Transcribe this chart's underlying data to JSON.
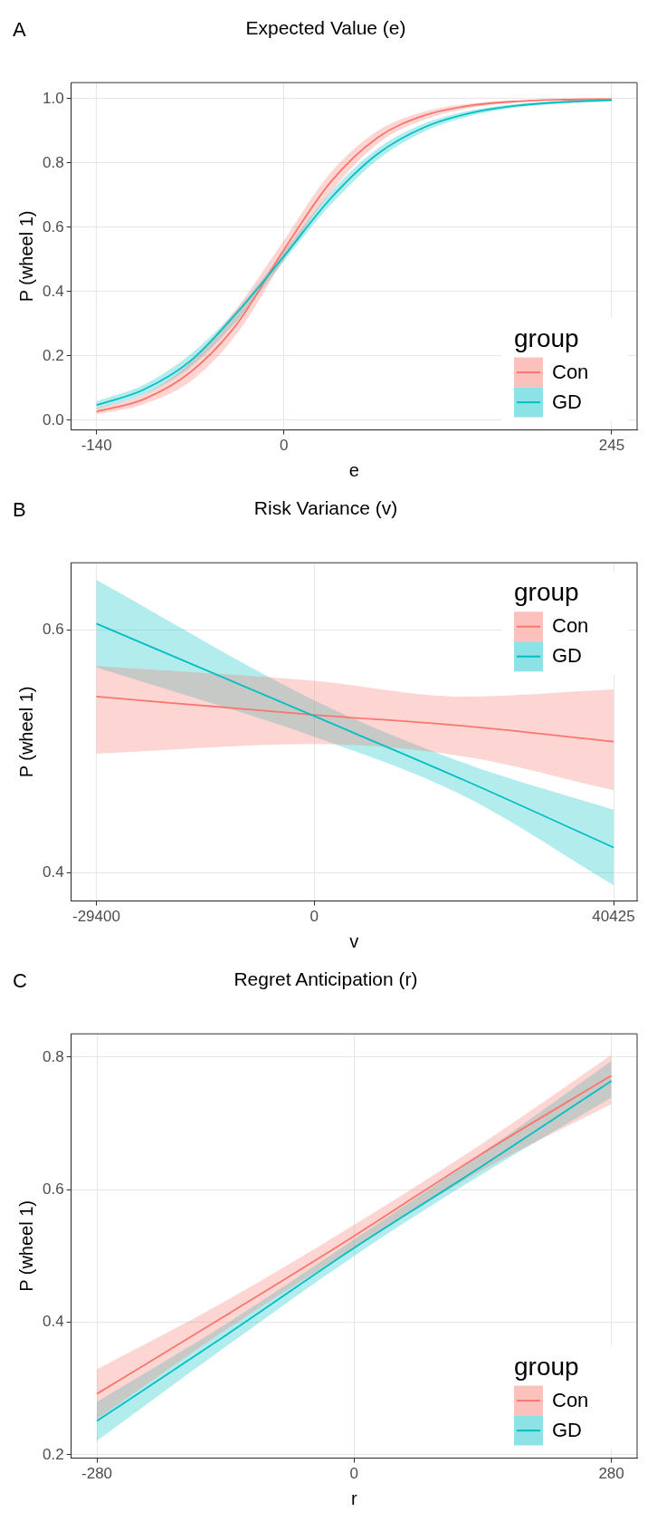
{
  "chart_data": [
    {
      "type": "line",
      "title": "Expected Value (e)",
      "xlabel": "e",
      "ylabel": "P (wheel 1)",
      "legend_title": "group",
      "annotations": [
        "A"
      ],
      "xlim": [
        -159,
        264
      ],
      "ylim": [
        -0.03,
        1.05
      ],
      "xticks": [
        -140,
        0,
        245
      ],
      "yticks": [
        {
          "value": 0,
          "label": "0.0"
        },
        0.2,
        0.4,
        0.6,
        0.8,
        {
          "value": 1,
          "label": "1.0"
        }
      ],
      "grid": true,
      "legend": "bottom right",
      "marker": "none",
      "line_style": "solid",
      "x": [
        -140,
        -105,
        -70,
        -35,
        0,
        35,
        70,
        105,
        140,
        175,
        210,
        245
      ],
      "series": [
        {
          "name": "Con",
          "color": "#f8766d",
          "values": [
            0.027,
            0.065,
            0.149,
            0.3,
            0.53,
            0.741,
            0.879,
            0.948,
            0.979,
            0.992,
            0.997,
            0.999
          ],
          "lower": [
            0.018,
            0.05,
            0.12,
            0.27,
            0.5,
            0.71,
            0.86,
            0.935,
            0.972,
            0.988,
            0.995,
            0.998
          ],
          "upper": [
            0.038,
            0.08,
            0.18,
            0.35,
            0.56,
            0.77,
            0.9,
            0.96,
            0.985,
            0.995,
            0.999,
            1.0
          ]
        },
        {
          "name": "GD",
          "color": "#00bfc4",
          "values": [
            0.047,
            0.095,
            0.184,
            0.335,
            0.51,
            0.69,
            0.828,
            0.911,
            0.956,
            0.979,
            0.99,
            0.995
          ],
          "lower": [
            0.035,
            0.08,
            0.165,
            0.31,
            0.495,
            0.67,
            0.81,
            0.898,
            0.947,
            0.973,
            0.986,
            0.993
          ],
          "upper": [
            0.06,
            0.11,
            0.205,
            0.345,
            0.525,
            0.71,
            0.845,
            0.923,
            0.964,
            0.984,
            0.993,
            0.997
          ]
        }
      ]
    },
    {
      "type": "line",
      "title": "Risk Variance (v)",
      "xlabel": "v",
      "ylabel": "P (wheel 1)",
      "legend_title": "group",
      "annotations": [
        "B"
      ],
      "xlim": [
        -32800,
        43600
      ],
      "ylim": [
        0.377,
        0.655
      ],
      "xticks": [
        -29400,
        0,
        40425
      ],
      "yticks": [
        0.4,
        0.6
      ],
      "grid": true,
      "legend": "top right",
      "marker": "none",
      "line_style": "solid",
      "x": [
        -29400,
        0,
        20000,
        40425
      ],
      "series": [
        {
          "name": "Con",
          "color": "#f8766d",
          "values": [
            0.545,
            0.53,
            0.521,
            0.508
          ],
          "lower": [
            0.498,
            0.506,
            0.496,
            0.468
          ],
          "upper": [
            0.57,
            0.558,
            0.545,
            0.551
          ]
        },
        {
          "name": "GD",
          "color": "#00bfc4",
          "values": [
            0.605,
            0.529,
            0.477,
            0.421
          ],
          "lower": [
            0.569,
            0.512,
            0.464,
            0.39
          ],
          "upper": [
            0.641,
            0.542,
            0.491,
            0.452
          ]
        }
      ]
    },
    {
      "type": "line",
      "title": "Regret Anticipation (r)",
      "xlabel": "r",
      "ylabel": "P (wheel 1)",
      "legend_title": "group",
      "annotations": [
        "C"
      ],
      "xlim": [
        -308,
        308
      ],
      "ylim": [
        0.195,
        0.835
      ],
      "xticks": [
        -280,
        0,
        280
      ],
      "yticks": [
        0.2,
        0.4,
        0.6,
        0.8
      ],
      "grid": true,
      "legend": "bottom right",
      "marker": "none",
      "line_style": "solid",
      "x": [
        -280,
        -140,
        0,
        140,
        280
      ],
      "series": [
        {
          "name": "Con",
          "color": "#f8766d",
          "values": [
            0.292,
            0.41,
            0.53,
            0.655,
            0.772
          ],
          "lower": [
            0.254,
            0.388,
            0.512,
            0.63,
            0.729
          ],
          "upper": [
            0.329,
            0.432,
            0.547,
            0.67,
            0.803
          ]
        },
        {
          "name": "GD",
          "color": "#00bfc4",
          "values": [
            0.251,
            0.38,
            0.512,
            0.636,
            0.764
          ],
          "lower": [
            0.221,
            0.363,
            0.5,
            0.624,
            0.739
          ],
          "upper": [
            0.28,
            0.397,
            0.525,
            0.656,
            0.794
          ]
        }
      ]
    }
  ]
}
